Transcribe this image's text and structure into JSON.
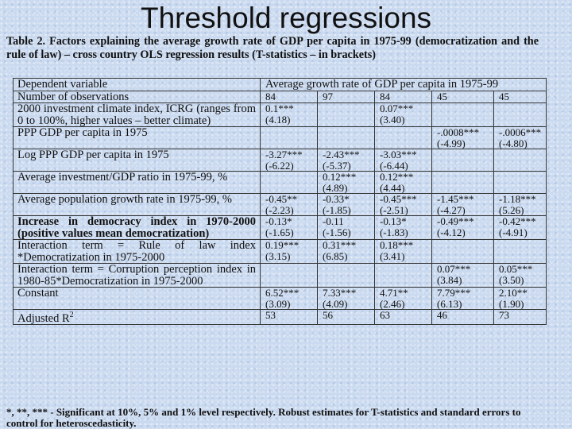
{
  "title": "Threshold regressions",
  "caption": "Table 2. Factors explaining the average growth rate of GDP per capita in 1975-99 (democratization and the rule of law) – cross country OLS regression results (T-statistics – in brackets)",
  "header": {
    "dependent_label": "Dependent variable",
    "dependent_value": "Average growth rate of GDP per capita in 1975-99",
    "obs_label": "Number of observations",
    "obs_values": [
      "84",
      "97",
      "84",
      "45",
      "45"
    ]
  },
  "rows": [
    {
      "label": "2000 investment climate index, ICRG (ranges from 0 to 100%, higher values – better climate)",
      "bold": false,
      "cells": [
        [
          "0.1***",
          "(4.18)"
        ],
        [
          "",
          ""
        ],
        [
          "0.07***",
          "(3.40)"
        ],
        [
          "",
          ""
        ],
        [
          "",
          ""
        ]
      ]
    },
    {
      "label": "PPP GDP per capita in 1975",
      "bold": false,
      "cells": [
        [
          "",
          ""
        ],
        [
          "",
          ""
        ],
        [
          "",
          ""
        ],
        [
          "-.0008***",
          "(-4.99)"
        ],
        [
          "-.0006***",
          "(-4.80)"
        ]
      ]
    },
    {
      "label": "Log PPP GDP per capita in 1975",
      "bold": false,
      "cells": [
        [
          "-3.27***",
          "(-6.22)"
        ],
        [
          "-2.43***",
          "(-5.37)"
        ],
        [
          "-3.03***",
          "(-6.44)"
        ],
        [
          "",
          ""
        ],
        [
          "",
          ""
        ]
      ]
    },
    {
      "label": "Average investment/GDP ratio in 1975-99, %",
      "bold": false,
      "cells": [
        [
          "",
          ""
        ],
        [
          "0.12***",
          "(4.89)"
        ],
        [
          "0.12***",
          "(4.44)"
        ],
        [
          "",
          ""
        ],
        [
          "",
          ""
        ]
      ]
    },
    {
      "label": "Average population growth rate in 1975-99, %",
      "bold": false,
      "cells": [
        [
          "-0.45**",
          "(-2.23)"
        ],
        [
          "-0.33*",
          "(-1.85)"
        ],
        [
          "-0.45***",
          "(-2.51)"
        ],
        [
          "-1.45***",
          "(-4.27)"
        ],
        [
          "-1.18***",
          "(5.26)"
        ]
      ]
    },
    {
      "label": "Increase in democracy index in 1970-2000 (positive values mean democratization)",
      "bold": true,
      "cells": [
        [
          "-0.13*",
          "(-1.65)"
        ],
        [
          "-0.11",
          "(-1.56)"
        ],
        [
          "-0.13*",
          "(-1.83)"
        ],
        [
          "-0.49***",
          "(-4.12)"
        ],
        [
          "-0.42***",
          "(-4.91)"
        ]
      ]
    },
    {
      "label": "Interaction term = Rule of law index *Democratization in 1975-2000",
      "bold": false,
      "cells": [
        [
          "0.19***",
          "(3.15)"
        ],
        [
          "0.31***",
          "(6.85)"
        ],
        [
          "0.18***",
          "(3.41)"
        ],
        [
          "",
          ""
        ],
        [
          "",
          ""
        ]
      ]
    },
    {
      "label": "Interaction term = Corruption perception index in 1980-85*Democratization in 1975-2000",
      "bold": false,
      "cells": [
        [
          "",
          ""
        ],
        [
          "",
          ""
        ],
        [
          "",
          ""
        ],
        [
          "0.07***",
          "(3.84)"
        ],
        [
          "0.05***",
          "(3.50)"
        ]
      ]
    },
    {
      "label": "Constant",
      "bold": false,
      "cells": [
        [
          "6.52***",
          "(3.09)"
        ],
        [
          "7.33***",
          "(4.09)"
        ],
        [
          "4.71**",
          "(2.46)"
        ],
        [
          "7.79***",
          "(6.13)"
        ],
        [
          "2.10**",
          "(1.90)"
        ]
      ]
    }
  ],
  "r2": {
    "label": "Adjusted R",
    "sup": "2",
    "values": [
      "53",
      "56",
      "63",
      "46",
      "73"
    ]
  },
  "footnote": "*, **, *** - Significant at 10%, 5% and 1% level respectively. Robust estimates for T-statistics and standard errors to control for heteroscedasticity."
}
